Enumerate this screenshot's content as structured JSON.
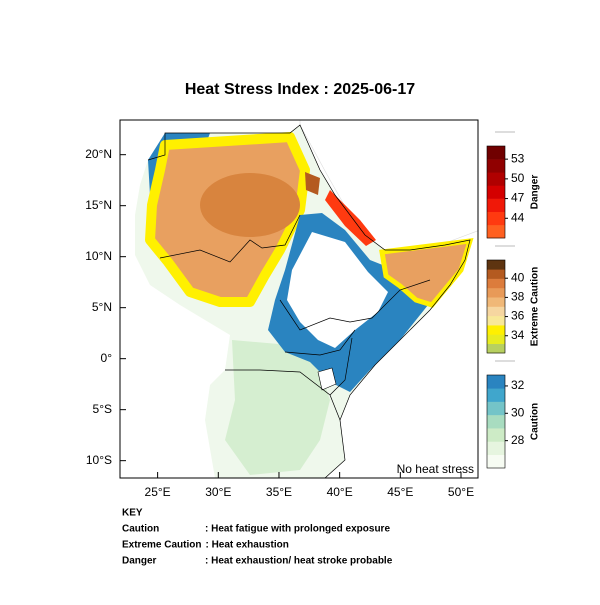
{
  "chart_data": {
    "type": "map",
    "title": "Heat Stress Index : 2025-06-17",
    "annotation": "No heat stress",
    "xlim": [
      21.9,
      51.4
    ],
    "ylim": [
      -11.7,
      23.4
    ],
    "xticks": [
      {
        "value": 25,
        "label": "25°E"
      },
      {
        "value": 30,
        "label": "30°E"
      },
      {
        "value": 35,
        "label": "35°E"
      },
      {
        "value": 40,
        "label": "40°E"
      },
      {
        "value": 45,
        "label": "45°E"
      },
      {
        "value": 50,
        "label": "50°E"
      }
    ],
    "yticks": [
      {
        "value": 20,
        "label": "20°N"
      },
      {
        "value": 15,
        "label": "15°N"
      },
      {
        "value": 10,
        "label": "10°N"
      },
      {
        "value": 5,
        "label": "5°N"
      },
      {
        "value": 0,
        "label": "0°"
      },
      {
        "value": -5,
        "label": "5°S"
      },
      {
        "value": -10,
        "label": "10°S"
      }
    ],
    "colorbars": [
      {
        "name": "Danger",
        "lim": [
          41,
          55
        ],
        "ticks": [
          53,
          50,
          47,
          44
        ],
        "colors": [
          "#ff6020",
          "#ff3a10",
          "#f01808",
          "#d40000",
          "#b00000",
          "#900000",
          "#700000"
        ]
      },
      {
        "name": "Extreme Caution",
        "lim": [
          32.2,
          41.9
        ],
        "ticks": [
          40,
          38,
          36,
          34
        ],
        "colors": [
          "#b8d060",
          "#e8ec20",
          "#fff000",
          "#f8e898",
          "#f6d6a0",
          "#f0b878",
          "#e89a58",
          "#dc7c3c",
          "#b45a20",
          "#5e3410"
        ]
      },
      {
        "name": "Caution",
        "lim": [
          26,
          32.8
        ],
        "ticks": [
          32,
          30,
          28
        ],
        "colors": [
          "#f7fcf3",
          "#e6f5df",
          "#cdebc6",
          "#a8dcc0",
          "#74c4c8",
          "#40a6cc",
          "#2a84c0"
        ]
      }
    ]
  },
  "key": {
    "title": "KEY",
    "rows": [
      [
        "Caution",
        ": Heat fatigue with prolonged exposure"
      ],
      [
        "Extreme Caution",
        ": Heat exhaustion"
      ],
      [
        "Danger",
        ": Heat exhaustion/ heat stroke probable"
      ]
    ]
  }
}
